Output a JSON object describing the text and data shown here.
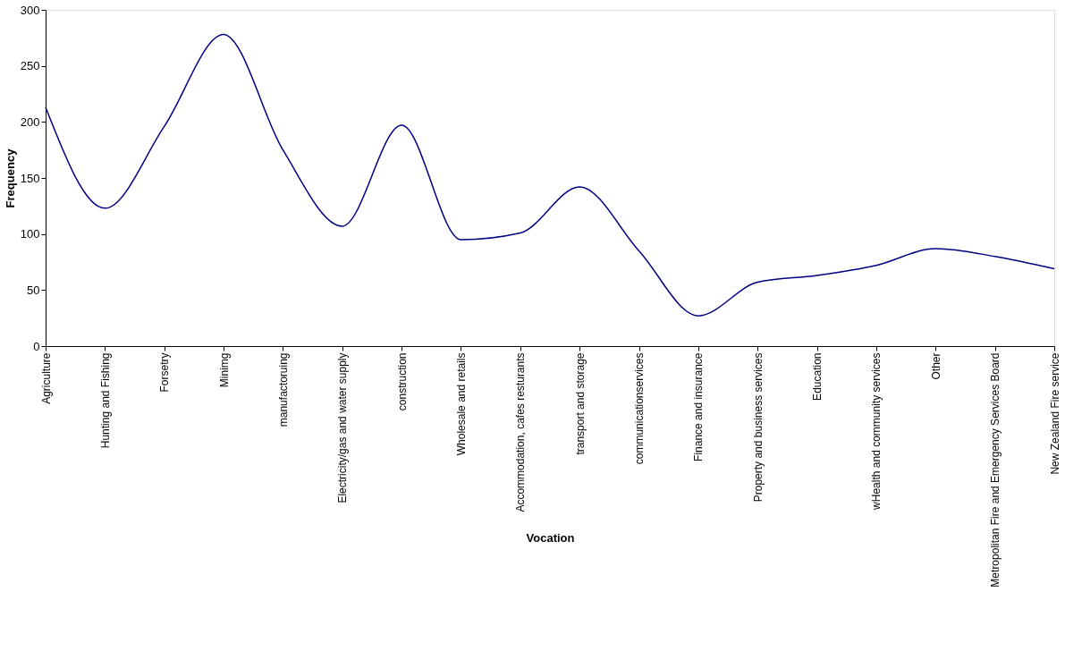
{
  "chart_data": {
    "type": "line",
    "xlabel": "Vocation",
    "ylabel": "Frequency",
    "categories": [
      "Agriculture",
      "Hunting and Fishing",
      "Forsetry",
      "Minimg",
      "manufactoruing",
      "Electricity/gas and water supply",
      "construction",
      "Wholesale and retails",
      "Accommodation, cafes resturants",
      "transport and storage",
      "communicationservices",
      "Finance and insurance",
      "Property and business services",
      "Education",
      "wHealth and community services",
      "Other",
      "Metropolitan Fire and Emergency Services Board",
      "New Zealand Fire service"
    ],
    "series": [
      {
        "color": "#000080",
        "values": [
          213,
          123,
          196,
          278,
          175,
          107,
          197,
          95,
          101,
          142,
          85,
          27,
          57,
          63,
          72,
          87,
          80,
          69
        ]
      }
    ],
    "ylim": [
      0,
      300
    ],
    "yticks": [
      0,
      50,
      100,
      150,
      200,
      250,
      300
    ],
    "grid": false,
    "marker": "none",
    "line_style": "solid"
  }
}
